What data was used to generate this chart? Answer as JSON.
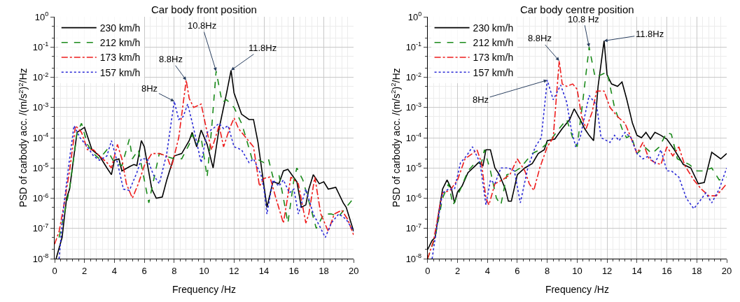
{
  "chart_data": [
    {
      "type": "line",
      "title": "Car body front position",
      "xlabel": "Frequency /Hz",
      "ylabel": "PSD of carbody acc. /(m/s$^{2}$)$^{2}$/Hz",
      "log": "y",
      "grid": true,
      "legend": "top left",
      "marker": "none",
      "xlim": [
        0,
        20
      ],
      "xticks": [
        0,
        2,
        4,
        6,
        8,
        10,
        12,
        14,
        16,
        18,
        20
      ],
      "ylim": [
        1e-08,
        1
      ],
      "yticks": [
        {
          "value": 1e-08,
          "label": "10$^{-8}$"
        },
        {
          "value": 1e-07,
          "label": "10$^{-7}$"
        },
        {
          "value": 1e-06,
          "label": "10$^{-6}$"
        },
        {
          "value": 1e-05,
          "label": "10$^{-5}$"
        },
        {
          "value": 0.0001,
          "label": "10$^{-4}$"
        },
        {
          "value": 0.001,
          "label": "10$^{-3}$"
        },
        {
          "value": 0.01,
          "label": "10$^{-2}$"
        },
        {
          "value": 0.1,
          "label": "10$^{-1}$"
        },
        {
          "value": 1,
          "label": "10$^{0}$"
        }
      ],
      "annotations": [
        {
          "text": "8Hz",
          "x": 8,
          "y": 0.0016
        },
        {
          "text": "8.8Hz",
          "x": 8.8,
          "y": 0.008
        },
        {
          "text": "10.8Hz",
          "x": 10.8,
          "y": 0.016
        },
        {
          "text": "11.8Hz",
          "x": 11.8,
          "y": 0.017
        }
      ],
      "series": [
        {
          "name": "230 km/h",
          "color": "#000000",
          "line_style": "solid",
          "x": [
            0.1,
            0.5,
            0.8,
            1,
            1.5,
            2,
            2.5,
            3,
            3.5,
            3.8,
            4,
            4.3,
            4.5,
            5,
            5.3,
            5.5,
            5.8,
            6,
            6.5,
            6.8,
            7.2,
            7.5,
            8,
            8.5,
            9,
            9.2,
            9.5,
            9.8,
            10.2,
            10.6,
            11,
            11.5,
            11.8,
            12,
            12.5,
            13,
            13.3,
            13.6,
            14.2,
            14.6,
            15,
            15.3,
            15.6,
            16.2,
            16.5,
            16.8,
            17,
            17.3,
            17.7,
            18,
            18.3,
            18.8,
            19.3,
            19.5,
            20
          ],
          "values": [
            1e-08,
            5e-08,
            1e-06,
            2e-06,
            0.00015,
            0.00022,
            4e-05,
            2.5e-05,
            1e-05,
            6e-06,
            1.8e-05,
            2e-05,
            8e-06,
            1.1e-05,
            1.3e-05,
            1.2e-05,
            8e-05,
            5e-05,
            2e-06,
            1e-06,
            1.1e-06,
            4e-06,
            2.5e-05,
            3e-05,
            8e-05,
            0.00015,
            5e-05,
            0.00018,
            6e-05,
            1e-05,
            0.0002,
            0.003,
            0.017,
            0.003,
            0.0006,
            0.0004,
            0.0004,
            7e-05,
            5e-07,
            3.5e-06,
            3e-06,
            8e-06,
            9e-06,
            3.5e-06,
            5e-07,
            6e-07,
            2e-06,
            6e-06,
            3e-06,
            3.5e-06,
            2e-06,
            2.3e-06,
            7e-07,
            5e-07,
            8e-08
          ]
        },
        {
          "name": "212 km/h",
          "color": "#1a8a1a",
          "line_style": "dashed",
          "x": [
            0.3,
            1,
            1.5,
            1.8,
            2.2,
            2.6,
            3,
            3.5,
            4,
            4.5,
            5,
            5.2,
            5.6,
            6,
            6.3,
            7,
            7.4,
            8,
            8.5,
            9,
            9.2,
            9.5,
            9.8,
            10.2,
            10.5,
            10.8,
            11.2,
            11.5,
            12,
            12.5,
            12.8,
            13.2,
            13.5,
            14,
            14.3,
            14.6,
            15,
            15.3,
            15.6,
            16,
            16.2,
            16.6,
            17,
            17.5,
            18,
            18.5,
            19,
            19.5,
            20
          ],
          "values": [
            5e-08,
            2e-06,
            0.00015,
            0.0003,
            6e-05,
            3e-05,
            2e-05,
            4e-05,
            1.5e-05,
            1.2e-05,
            9e-05,
            2e-05,
            4e-05,
            4e-06,
            7e-07,
            3e-05,
            2.5e-05,
            2e-05,
            2e-05,
            6e-05,
            0.00013,
            6e-05,
            0.0001,
            5e-06,
            0.0002,
            0.016,
            0.0015,
            0.0018,
            0.001,
            0.0003,
            0.0001,
            2e-05,
            2e-05,
            1.5e-05,
            2e-05,
            5e-06,
            6e-06,
            1e-06,
            1.5e-07,
            4e-06,
            1e-05,
            4e-06,
            8e-07,
            1e-07,
            3e-07,
            3e-07,
            2.5e-07,
            5e-07,
            1e-06
          ]
        },
        {
          "name": "173 km/h",
          "color": "#ee1c1c",
          "line_style": "dashdot",
          "x": [
            0,
            0.3,
            0.6,
            1,
            1.4,
            1.8,
            2.2,
            2.6,
            3,
            3.5,
            3.8,
            4.2,
            4.5,
            4.8,
            5.2,
            5.6,
            6,
            6.5,
            7,
            7.5,
            7.8,
            8,
            8.3,
            8.8,
            9,
            9.3,
            9.8,
            10.2,
            10.5,
            11,
            11.3,
            11.7,
            12,
            12.3,
            12.8,
            13.3,
            13.7,
            14,
            14.4,
            14.8,
            15.3,
            15.8,
            16.3,
            16.8,
            17,
            17.4,
            17.8,
            18.3,
            18.7,
            19.2,
            19.6,
            20
          ],
          "values": [
            3e-08,
            8e-08,
            5e-07,
            8e-06,
            0.00025,
            0.00015,
            4e-05,
            4e-05,
            2.5e-05,
            1.5e-05,
            1e-05,
            6e-05,
            2e-05,
            3e-06,
            1e-06,
            3e-06,
            1.2e-05,
            3e-05,
            3e-05,
            2.5e-05,
            1e-05,
            2.5e-05,
            0.0001,
            0.008,
            0.002,
            0.001,
            0.0013,
            0.00015,
            4e-05,
            0.00025,
            5e-05,
            0.0002,
            0.00045,
            0.0002,
            0.0001,
            5e-05,
            2.5e-06,
            4.5e-06,
            5e-06,
            1e-06,
            1.5e-07,
            5e-06,
            3e-06,
            1.5e-07,
            3e-07,
            5e-06,
            3e-07,
            8e-08,
            3e-07,
            4e-07,
            2e-07,
            6e-08
          ]
        },
        {
          "name": "157 km/h",
          "color": "#2a2ad6",
          "line_style": "dotted",
          "x": [
            0.3,
            0.6,
            1,
            1.3,
            1.7,
            2.2,
            2.6,
            3,
            3.5,
            3.8,
            4.2,
            4.6,
            5,
            5.5,
            5.8,
            6.2,
            6.6,
            7,
            7.5,
            8,
            8.3,
            8.6,
            8.9,
            9.3,
            9.8,
            10.2,
            10.6,
            11,
            11.3,
            11.6,
            12,
            12.5,
            13,
            13.3,
            13.8,
            14,
            14.2,
            14.6,
            15,
            15.3,
            15.7,
            16,
            16.3,
            16.8,
            17.3,
            17.8,
            18.1,
            18.5,
            19,
            19.5,
            20
          ],
          "values": [
            1e-08,
            5e-07,
            2e-05,
            0.00025,
            0.0001,
            5e-05,
            2.5e-05,
            1.8e-05,
            2.5e-05,
            8e-05,
            1.5e-05,
            2e-06,
            1.8e-06,
            7e-06,
            2e-05,
            2e-05,
            6e-06,
            3e-06,
            3e-05,
            0.0016,
            0.0004,
            0.0005,
            0.0013,
            0.0002,
            1.5e-05,
            0.00015,
            0.0002,
            0.0003,
            0.0002,
            0.00025,
            5e-05,
            4e-05,
            1.5e-05,
            2e-05,
            6e-06,
            2e-06,
            3e-07,
            4e-06,
            2.5e-06,
            4e-06,
            1.5e-06,
            2e-06,
            3e-07,
            2e-06,
            3e-07,
            1e-07,
            5e-08,
            1.5e-07,
            3e-07,
            2e-07,
            8e-08
          ]
        }
      ]
    },
    {
      "type": "line",
      "title": "Car body centre position",
      "xlabel": "Frequency /Hz",
      "ylabel": "PSD of carbody acc. /(m/s$^{2}$)$^{2}$/Hz",
      "log": "y",
      "grid": true,
      "legend": "top left",
      "marker": "none",
      "xlim": [
        0,
        20
      ],
      "xticks": [
        0,
        2,
        4,
        6,
        8,
        10,
        12,
        14,
        16,
        18,
        20
      ],
      "ylim": [
        1e-08,
        1
      ],
      "yticks": [
        {
          "value": 1e-08,
          "label": "10$^{-8}$"
        },
        {
          "value": 1e-07,
          "label": "10$^{-7}$"
        },
        {
          "value": 1e-06,
          "label": "10$^{-6}$"
        },
        {
          "value": 1e-05,
          "label": "10$^{-5}$"
        },
        {
          "value": 0.0001,
          "label": "10$^{-4}$"
        },
        {
          "value": 0.001,
          "label": "10$^{-3}$"
        },
        {
          "value": 0.01,
          "label": "10$^{-2}$"
        },
        {
          "value": 0.1,
          "label": "10$^{-1}$"
        },
        {
          "value": 1,
          "label": "10$^{0}$"
        }
      ],
      "annotations": [
        {
          "text": "8Hz",
          "x": 8,
          "y": 0.008
        },
        {
          "text": "8.8Hz",
          "x": 8.8,
          "y": 0.035
        },
        {
          "text": "10.8 Hz",
          "x": 10.8,
          "y": 0.1
        },
        {
          "text": "11.8Hz",
          "x": 11.8,
          "y": 0.16
        }
      ],
      "series": [
        {
          "name": "230 km/h",
          "color": "#000000",
          "line_style": "solid",
          "x": [
            0,
            0.3,
            0.5,
            0.8,
            1,
            1.3,
            1.6,
            1.8,
            2,
            2.3,
            2.7,
            3.2,
            3.4,
            3.7,
            3.9,
            4.2,
            4.5,
            4.8,
            5.2,
            5.4,
            5.6,
            6,
            6.5,
            7,
            7.4,
            7.8,
            8,
            8.5,
            9,
            9.5,
            9.8,
            10.2,
            10.5,
            10.8,
            11.1,
            11.4,
            11.8,
            12,
            12.3,
            12.7,
            13,
            13.3,
            13.7,
            14,
            14.3,
            14.6,
            14.9,
            15.2,
            15.6,
            16,
            16.5,
            17.1,
            17.6,
            18.1,
            18.5,
            19,
            19.6,
            20
          ],
          "values": [
            2e-08,
            4e-08,
            5e-08,
            5e-07,
            2e-06,
            4e-06,
            2e-06,
            7e-07,
            1.6e-06,
            2.5e-06,
            7e-06,
            1.2e-05,
            1.5e-05,
            1.2e-05,
            4e-05,
            4e-05,
            1e-05,
            6e-06,
            2e-06,
            8e-07,
            8e-07,
            6e-06,
            1e-05,
            1.4e-05,
            3e-05,
            4e-05,
            8e-05,
            9e-05,
            0.0002,
            0.0004,
            0.0009,
            0.0004,
            0.0002,
            0.00012,
            8e-05,
            0.005,
            0.16,
            0.012,
            0.006,
            0.005,
            0.007,
            0.002,
            0.0003,
            0.00012,
            0.0001,
            0.00015,
            9e-05,
            0.00015,
            0.00012,
            9e-05,
            4e-05,
            1.3e-05,
            1e-05,
            3e-06,
            3.3e-06,
            3.3e-05,
            2e-05,
            3e-05
          ]
        },
        {
          "name": "212 km/h",
          "color": "#1a8a1a",
          "line_style": "dashed",
          "x": [
            0,
            0.5,
            1,
            1.4,
            1.7,
            2.2,
            2.7,
            3.2,
            3.6,
            3.8,
            4.2,
            4.6,
            4.9,
            5.3,
            5.7,
            6.2,
            7,
            7.5,
            8.2,
            8.8,
            9.3,
            9.7,
            10,
            10.4,
            10.8,
            11.2,
            11.6,
            12,
            12.5,
            13,
            13.3,
            13.6,
            14,
            14.5,
            15,
            15.5,
            16,
            16.3,
            16.7,
            17.5,
            18,
            18.5,
            19,
            19.5,
            20
          ],
          "values": [
            1e-08,
            5e-08,
            1e-06,
            3e-06,
            6e-07,
            2e-06,
            8e-06,
            1.5e-05,
            1.5e-05,
            4e-05,
            8e-06,
            1e-06,
            6e-07,
            6e-06,
            7e-06,
            1e-05,
            3e-05,
            4e-05,
            8e-05,
            0.0002,
            0.0004,
            0.0001,
            5e-05,
            0.002,
            0.1,
            0.01,
            0.012,
            0.015,
            0.001,
            0.0002,
            0.0001,
            0.00012,
            3e-05,
            5e-05,
            3e-05,
            5e-05,
            0.00015,
            0.00013,
            2e-05,
            1.3e-05,
            8e-06,
            8e-06,
            1e-05,
            4e-06,
            5e-06
          ]
        },
        {
          "name": "173 km/h",
          "color": "#ee1c1c",
          "line_style": "dashdot",
          "x": [
            0,
            0.4,
            0.8,
            1,
            1.5,
            2,
            2.5,
            3,
            3.3,
            3.6,
            3.9,
            4.1,
            4.5,
            5,
            5.5,
            6,
            6.5,
            6.8,
            7.1,
            7.5,
            8,
            8.4,
            8.8,
            9,
            9.3,
            9.7,
            10,
            10.3,
            10.6,
            11,
            11.3,
            11.8,
            12.2,
            12.7,
            13.2,
            13.6,
            14,
            14.4,
            14.8,
            15.2,
            15.6,
            16,
            16.4,
            16.8,
            17.2,
            17.8,
            18.3,
            18.8,
            19.3,
            19.7,
            20
          ],
          "values": [
            1e-08,
            4e-08,
            5e-07,
            1.5e-06,
            1.8e-06,
            4e-06,
            2e-05,
            3e-05,
            4e-05,
            1.5e-05,
            1e-06,
            6e-07,
            3e-06,
            4e-06,
            6e-06,
            2e-05,
            8e-06,
            3e-06,
            1.8e-06,
            1e-05,
            5e-05,
            0.0001,
            0.035,
            0.006,
            0.005,
            0.006,
            0.004,
            0.0005,
            0.0002,
            0.0007,
            0.0035,
            0.0035,
            0.001,
            0.0005,
            0.0003,
            0.0001,
            3e-05,
            7e-05,
            2e-05,
            1.5e-05,
            1.3e-05,
            5e-05,
            2.5e-05,
            5e-05,
            1.2e-05,
            4e-06,
            2e-06,
            1.2e-06,
            1.2e-06,
            2e-06,
            3e-06
          ]
        },
        {
          "name": "157 km/h",
          "color": "#2a2ad6",
          "line_style": "dotted",
          "x": [
            0.3,
            0.6,
            1,
            1.4,
            1.8,
            2.2,
            2.6,
            3,
            3.5,
            3.9,
            4.2,
            4.5,
            4.9,
            5.4,
            5.8,
            6.2,
            6.7,
            7.2,
            7.6,
            8,
            8.4,
            8.9,
            9.3,
            9.6,
            9.9,
            10.2,
            10.8,
            11.3,
            11.6,
            12.2,
            12.5,
            12.8,
            13.2,
            13.6,
            14,
            14.4,
            14.8,
            15.2,
            15.6,
            16,
            16.3,
            16.8,
            17.3,
            17.8,
            18.2,
            18.6,
            19,
            19.5,
            20
          ],
          "values": [
            1e-08,
            1e-07,
            1.5e-06,
            2e-06,
            2e-06,
            1.5e-05,
            2.5e-05,
            5e-05,
            1.5e-05,
            6e-07,
            4e-06,
            3e-06,
            1e-05,
            1e-05,
            8e-06,
            7e-07,
            1e-05,
            5e-05,
            0.0001,
            0.008,
            0.0018,
            0.0055,
            0.0015,
            0.0002,
            5e-05,
            0.0001,
            0.0025,
            0.0012,
            0.0001,
            7e-05,
            0.00012,
            8e-05,
            0.00015,
            0.0001,
            3e-05,
            2e-05,
            2.5e-05,
            1.4e-05,
            4e-05,
            8e-06,
            8e-06,
            5e-06,
            1e-06,
            4.5e-07,
            8e-07,
            1.5e-06,
            7e-07,
            2e-06,
            1e-05
          ]
        }
      ]
    }
  ]
}
